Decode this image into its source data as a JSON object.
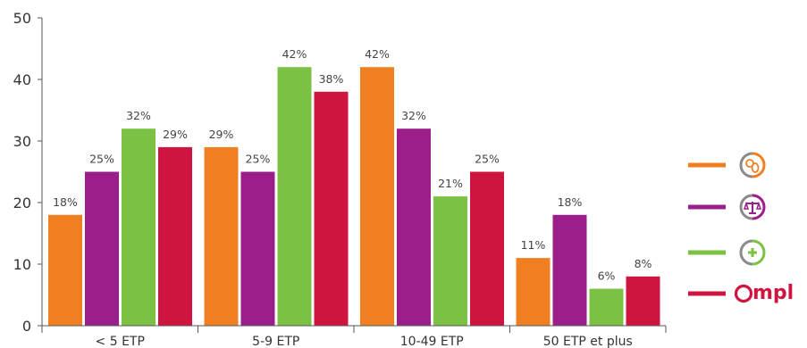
{
  "chart_data": {
    "type": "bar",
    "ylim": [
      0,
      50
    ],
    "yticks": [
      0,
      10,
      20,
      30,
      40,
      50
    ],
    "categories": [
      "< 5 ETP",
      "5-9 ETP",
      "10-49 ETP",
      "50 ETP et plus"
    ],
    "series": [
      {
        "color": "#f07f22",
        "icon": "coins-icon",
        "values": [
          18,
          29,
          42,
          11
        ],
        "labels": [
          "18%",
          "29%",
          "42%",
          "11%"
        ]
      },
      {
        "color": "#9b1f8a",
        "icon": "scales-icon",
        "values": [
          25,
          25,
          32,
          18
        ],
        "labels": [
          "25%",
          "25%",
          "32%",
          "18%"
        ]
      },
      {
        "color": "#7bc144",
        "icon": "plus-icon",
        "values": [
          32,
          42,
          21,
          6
        ],
        "labels": [
          "32%",
          "42%",
          "21%",
          "6%"
        ]
      },
      {
        "color": "#cf1440",
        "icon": "ompl-logo",
        "values": [
          29,
          38,
          25,
          8
        ],
        "labels": [
          "29%",
          "38%",
          "25%",
          "8%"
        ]
      }
    ],
    "legend": {
      "placement": "right",
      "brand_text": "Ompl"
    }
  }
}
